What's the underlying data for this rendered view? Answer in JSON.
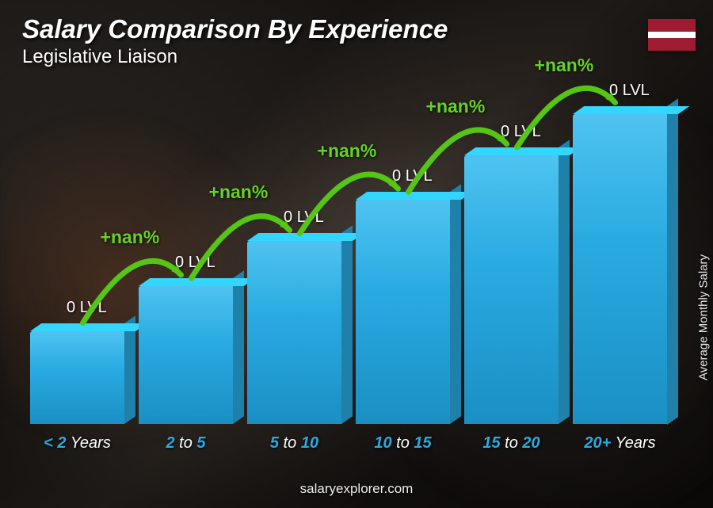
{
  "title": "Salary Comparison By Experience",
  "subtitle": "Legislative Liaison",
  "y_axis_label": "Average Monthly Salary",
  "footer": "salaryexplorer.com",
  "flag": {
    "top_color": "#9e1b34",
    "mid_color": "#ffffff",
    "bot_color": "#9e1b34"
  },
  "chart": {
    "type": "bar",
    "bar_color": "#29abe2",
    "bar_gradient_top": "#4fc3f0",
    "bar_gradient_bottom": "#1a8fc4",
    "value_color": "#ffffff",
    "tick_color": "#29abe2",
    "delta_color": "#66d126",
    "arrow_color": "#55c516",
    "title_color": "#ffffff",
    "font_family": "Arial",
    "title_fontsize": 33,
    "subtitle_fontsize": 24,
    "value_fontsize": 20,
    "tick_fontsize": 20,
    "delta_fontsize": 23,
    "bars": [
      {
        "label_prefix": "< 2",
        "label_suffix": " Years",
        "value_label": "0 LVL",
        "height_pct": 27
      },
      {
        "label_prefix": "2",
        "label_mid": " to ",
        "label_suffix2": "5",
        "value_label": "0 LVL",
        "height_pct": 40
      },
      {
        "label_prefix": "5",
        "label_mid": " to ",
        "label_suffix2": "10",
        "value_label": "0 LVL",
        "height_pct": 53
      },
      {
        "label_prefix": "10",
        "label_mid": " to ",
        "label_suffix2": "15",
        "value_label": "0 LVL",
        "height_pct": 65
      },
      {
        "label_prefix": "15",
        "label_mid": " to ",
        "label_suffix2": "20",
        "value_label": "0 LVL",
        "height_pct": 78
      },
      {
        "label_prefix": "20+",
        "label_suffix": " Years",
        "value_label": "0 LVL",
        "height_pct": 90
      }
    ],
    "deltas": [
      {
        "label": "+nan%"
      },
      {
        "label": "+nan%"
      },
      {
        "label": "+nan%"
      },
      {
        "label": "+nan%"
      },
      {
        "label": "+nan%"
      }
    ]
  }
}
